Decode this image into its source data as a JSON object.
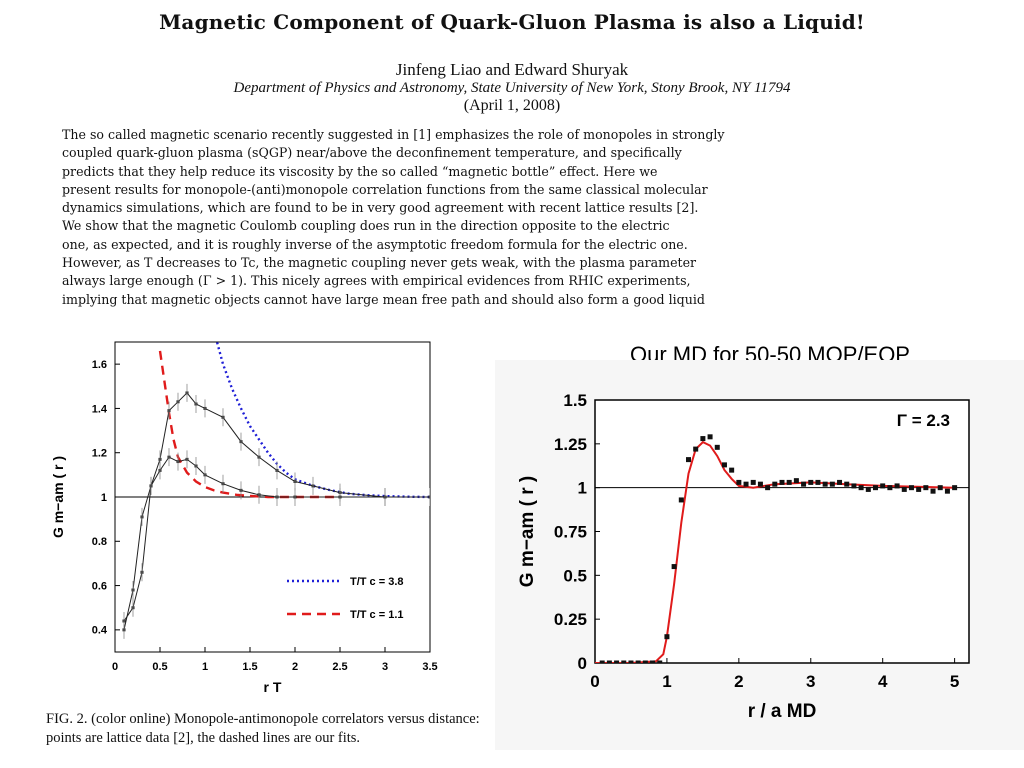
{
  "paper": {
    "title": "Magnetic Component of Quark-Gluon Plasma is also a Liquid!",
    "authors": "Jinfeng Liao and Edward Shuryak",
    "affiliation": "Department of Physics and Astronomy, State University of New York, Stony Brook, NY 11794",
    "date": "(April 1, 2008)",
    "abstract_lines": [
      "The so called magnetic scenario recently suggested in [1] emphasizes the role of monopoles in strongly",
      "coupled quark-gluon plasma (sQGP) near/above the deconfinement temperature, and specifically",
      "predicts that they help reduce its viscosity by the so called “magnetic bottle” effect.  Here we",
      "present results for monopole-(anti)monopole correlation functions from the same classical molecular",
      "dynamics simulations, which are found to be in very good agreement with recent lattice results [2].",
      "We show that the magnetic Coulomb coupling does run in the direction opposite to the electric",
      "one, as expected, and it is roughly inverse of the asymptotic freedom formula for the electric one.",
      "However, as T decreases to Tc, the magnetic coupling never gets weak, with the plasma parameter",
      "always large enough (Γ > 1).  This nicely agrees with empirical evidences from RHIC experiments,",
      "implying that magnetic objects cannot have large mean free path and should also form a good liquid"
    ],
    "caption": "FIG. 2.  (color online) Monopole-antimonopole correlators versus distance: points are lattice data [2], the dashed lines are our fits."
  },
  "right_title": "Our MD for 50-50 MQP/EQP",
  "chart_data": [
    {
      "type": "line",
      "xlabel": "r T",
      "ylabel": "G m−am ( r )",
      "xlim": [
        0,
        3.5
      ],
      "ylim": [
        0.3,
        1.7
      ],
      "xticks": [
        "0",
        "0.5",
        "1",
        "1.5",
        "2",
        "2.5",
        "3",
        "3.5"
      ],
      "yticks": [
        "0.4",
        "0.6",
        "0.8",
        "1",
        "1.2",
        "1.4",
        "1.6"
      ],
      "legend": {
        "placement": "bottom-right"
      },
      "reference_line": 1,
      "series": [
        {
          "name": "T/T c = 3.8",
          "color": "#1f1fd6",
          "style": "dotted",
          "x": [
            1.12,
            1.2,
            1.3,
            1.4,
            1.5,
            1.6,
            1.7,
            1.8,
            1.9,
            2.0,
            2.2,
            2.4,
            2.6,
            2.8,
            3.0,
            3.3,
            3.5
          ],
          "y": [
            1.72,
            1.6,
            1.49,
            1.4,
            1.32,
            1.26,
            1.2,
            1.15,
            1.11,
            1.08,
            1.05,
            1.03,
            1.015,
            1.008,
            1.004,
            1.001,
            1.0
          ]
        },
        {
          "name": "T/T c = 1.1",
          "color": "#e01b1b",
          "style": "dashed",
          "x": [
            0.5,
            0.55,
            0.6,
            0.65,
            0.7,
            0.8,
            0.9,
            1.0,
            1.1,
            1.2,
            1.35,
            1.5,
            1.7,
            2.0,
            2.5
          ],
          "y": [
            1.66,
            1.52,
            1.38,
            1.26,
            1.18,
            1.11,
            1.07,
            1.045,
            1.03,
            1.02,
            1.01,
            1.005,
            1.0,
            1.0,
            1.0
          ]
        },
        {
          "name": "",
          "color": "#222222",
          "style": "solid",
          "x": [
            0.1,
            0.2,
            0.3,
            0.4,
            0.5,
            0.6,
            0.7,
            0.8,
            0.9,
            1.0,
            1.2,
            1.4,
            1.6,
            1.8,
            2.0,
            2.2,
            2.5,
            3.0,
            3.5
          ],
          "y": [
            0.44,
            0.5,
            0.66,
            1.05,
            1.17,
            1.39,
            1.43,
            1.47,
            1.42,
            1.4,
            1.36,
            1.25,
            1.18,
            1.12,
            1.07,
            1.05,
            1.02,
            1.0,
            1.0
          ]
        },
        {
          "name": "",
          "color": "#222222",
          "style": "solid",
          "x": [
            0.1,
            0.2,
            0.3,
            0.4,
            0.5,
            0.6,
            0.7,
            0.8,
            0.9,
            1.0,
            1.2,
            1.4,
            1.6,
            1.8,
            2.0,
            2.5,
            3.0,
            3.5
          ],
          "y": [
            0.4,
            0.58,
            0.91,
            1.05,
            1.12,
            1.18,
            1.16,
            1.17,
            1.14,
            1.1,
            1.06,
            1.03,
            1.01,
            1.0,
            1.0,
            1.0,
            1.0,
            1.0
          ]
        }
      ]
    },
    {
      "type": "line",
      "xlabel": "r / a MD",
      "ylabel": "G m−am ( r )",
      "xlim": [
        0,
        5.2
      ],
      "ylim": [
        0,
        1.5
      ],
      "xticks": [
        "0",
        "1",
        "2",
        "3",
        "4",
        "5"
      ],
      "yticks": [
        "0",
        "0.25",
        "0.5",
        "0.75",
        "1",
        "1.25",
        "1.5"
      ],
      "annotation": "Γ = 2.3",
      "reference_line": 1,
      "series": [
        {
          "name": "",
          "color": "#e01b1b",
          "style": "solid",
          "x": [
            0.0,
            0.5,
            0.85,
            0.95,
            1.0,
            1.1,
            1.2,
            1.3,
            1.4,
            1.5,
            1.6,
            1.7,
            1.8,
            1.9,
            2.0,
            2.2,
            2.5,
            3.0,
            3.5,
            4.0,
            5.0
          ],
          "y": [
            0.0,
            0.0,
            0.01,
            0.05,
            0.15,
            0.45,
            0.8,
            1.08,
            1.22,
            1.26,
            1.24,
            1.18,
            1.1,
            1.05,
            1.01,
            1.0,
            1.02,
            1.03,
            1.02,
            1.01,
            1.0
          ]
        },
        {
          "name": "",
          "color": "#111111",
          "style": "points",
          "x": [
            0.1,
            0.2,
            0.3,
            0.4,
            0.5,
            0.6,
            0.7,
            0.8,
            0.9,
            1.0,
            1.1,
            1.2,
            1.3,
            1.4,
            1.5,
            1.6,
            1.7,
            1.8,
            1.9,
            2.0,
            2.1,
            2.2,
            2.3,
            2.4,
            2.5,
            2.6,
            2.7,
            2.8,
            2.9,
            3.0,
            3.1,
            3.2,
            3.3,
            3.4,
            3.5,
            3.6,
            3.7,
            3.8,
            3.9,
            4.0,
            4.1,
            4.2,
            4.3,
            4.4,
            4.5,
            4.6,
            4.7,
            4.8,
            4.9,
            5.0
          ],
          "y": [
            0.0,
            0.0,
            0.0,
            0.0,
            0.0,
            0.0,
            0.0,
            0.0,
            0.0,
            0.15,
            0.55,
            0.93,
            1.16,
            1.22,
            1.28,
            1.29,
            1.23,
            1.13,
            1.1,
            1.03,
            1.02,
            1.03,
            1.02,
            1.0,
            1.02,
            1.03,
            1.03,
            1.04,
            1.02,
            1.03,
            1.03,
            1.02,
            1.02,
            1.03,
            1.02,
            1.01,
            1.0,
            0.99,
            1.0,
            1.01,
            1.0,
            1.01,
            0.99,
            1.0,
            0.99,
            1.0,
            0.98,
            1.0,
            0.98,
            1.0
          ]
        }
      ]
    }
  ]
}
